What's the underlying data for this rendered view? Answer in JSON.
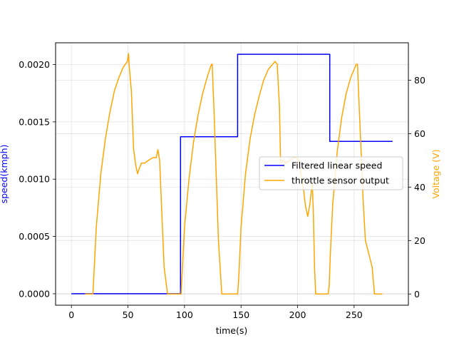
{
  "chart_data": {
    "type": "line",
    "title": "",
    "xlabel": "time(s)",
    "ylabel": "speed(kmph)",
    "ylabel_right": "Voltage (V)",
    "xlim": [
      -14,
      298
    ],
    "ylim": [
      -0.0001,
      0.00219
    ],
    "ylim_right": [
      -4.2,
      94
    ],
    "xticks": [
      0,
      50,
      100,
      150,
      200,
      250
    ],
    "yticks": [
      0.0,
      0.0005,
      0.001,
      0.0015,
      0.002
    ],
    "ytick_labels": [
      "0.0000",
      "0.0005",
      "0.0010",
      "0.0015",
      "0.0020"
    ],
    "yticks_right": [
      0,
      20,
      40,
      60,
      80
    ],
    "grid": true,
    "legend_position": "center-right",
    "colors": {
      "speed": "#0000ff",
      "voltage": "#ffa500",
      "axis_left_label": "#0000ff",
      "axis_right_label": "#ffa500"
    },
    "series": [
      {
        "name": "Filtered linear speed",
        "axis": "left",
        "color": "#0000ff",
        "x": [
          0,
          96.5,
          96.5,
          147,
          147,
          228.5,
          228.5,
          284
        ],
        "values": [
          0,
          0,
          0.00137,
          0.00137,
          0.00209,
          0.00209,
          0.00133,
          0.00133
        ]
      },
      {
        "name": "throttle sensor output",
        "axis": "right",
        "color": "#ffa500",
        "x": [
          12,
          18,
          19,
          22,
          26,
          30,
          34,
          38,
          42,
          46,
          49.5,
          50.5,
          51,
          53,
          55,
          57,
          58.5,
          60,
          62,
          65,
          68,
          72,
          75,
          76.5,
          78,
          80,
          82,
          85,
          88,
          93,
          94.5,
          96,
          97,
          100,
          104,
          108,
          112,
          116,
          120,
          123,
          124,
          124.5,
          126,
          128,
          130,
          133,
          137,
          146,
          147,
          148,
          150,
          154,
          158,
          162,
          166,
          170,
          174,
          178,
          180,
          182,
          184,
          185,
          187,
          190,
          193,
          196,
          199,
          201,
          203,
          205,
          207,
          209,
          211,
          213,
          214,
          215,
          216,
          218,
          220,
          222,
          226,
          227,
          228,
          229,
          231,
          235,
          239,
          243,
          247,
          250,
          252,
          253,
          254,
          256,
          258,
          260,
          263,
          266,
          268,
          270,
          272,
          275
        ],
        "values": [
          0,
          0,
          0,
          25,
          45,
          58,
          68,
          76,
          81,
          85,
          87,
          90,
          86,
          76,
          54,
          48,
          45,
          47,
          49,
          49,
          50,
          51,
          51,
          54,
          50,
          30,
          10,
          0,
          0,
          0,
          0,
          0,
          0,
          25,
          43,
          57,
          67,
          75,
          81,
          85,
          86,
          86,
          70,
          45,
          20,
          0,
          0,
          0,
          0,
          6,
          25,
          45,
          58,
          67,
          74,
          80,
          84,
          86,
          87,
          86,
          70,
          49,
          50,
          49,
          50,
          51,
          51,
          50,
          45,
          40,
          33,
          29,
          34,
          42,
          30,
          10,
          0,
          0,
          0,
          0,
          0,
          0,
          3,
          15,
          33,
          53,
          66,
          75,
          81,
          84,
          86,
          86,
          75,
          55,
          35,
          20,
          15,
          10,
          0,
          0,
          0,
          0
        ]
      }
    ]
  }
}
